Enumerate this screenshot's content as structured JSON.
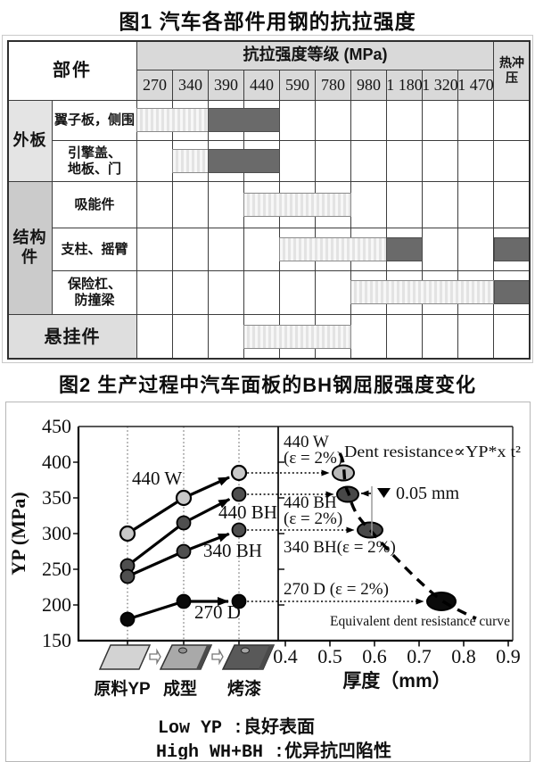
{
  "figure1": {
    "title": "图1 汽车各部件用钢的抗拉强度",
    "part_header": "部件",
    "strength_header": "抗拉强度等级 (MPa)",
    "hot_header": "热冲压",
    "grade_labels": [
      "270",
      "340",
      "390",
      "440",
      "590",
      "780",
      "980",
      "1 180",
      "1 320",
      "1 470"
    ],
    "groups": [
      {
        "label": "外板",
        "from_row": 0,
        "to_row": 1,
        "bg": "#e4e4e4",
        "full_width": false
      },
      {
        "label": "结构件",
        "from_row": 2,
        "to_row": 4,
        "bg": "#cbcbcb",
        "full_width": false
      },
      {
        "label": "悬挂件",
        "from_row": 5,
        "to_row": 5,
        "bg": "#dedede",
        "full_width": true
      }
    ],
    "rows": [
      {
        "component": "翼子板，侧围",
        "bars": [
          {
            "style": "light",
            "col": 0,
            "span": 2
          },
          {
            "style": "dark",
            "col": 2,
            "span": 2
          }
        ],
        "hot": false
      },
      {
        "component": "引擎盖、\n地板、门",
        "bars": [
          {
            "style": "light",
            "col": 1,
            "span": 1
          },
          {
            "style": "dark",
            "col": 2,
            "span": 2
          }
        ],
        "hot": false
      },
      {
        "component": "吸能件",
        "bars": [
          {
            "style": "light",
            "col": 3,
            "span": 3
          }
        ],
        "hot": false
      },
      {
        "component": "支柱、摇臂",
        "bars": [
          {
            "style": "light",
            "col": 4,
            "span": 3
          },
          {
            "style": "dark",
            "col": 7,
            "span": 1
          }
        ],
        "hot": true
      },
      {
        "component": "保险杠、\n防撞梁",
        "bars": [
          {
            "style": "light",
            "col": 6,
            "span": 4
          }
        ],
        "hot": true
      },
      {
        "component": "悬挂件",
        "bars": [
          {
            "style": "light",
            "col": 3,
            "span": 3
          }
        ],
        "hot": false
      }
    ]
  },
  "figure2": {
    "title": "图2 生产过程中汽车面板的BH钢屈服强度变化",
    "y_label": "YP (MPa)",
    "x_label": "厚度（mm）",
    "y_ticks": [
      "450",
      "400",
      "350",
      "300",
      "250",
      "200",
      "150"
    ],
    "x_ticks": [
      "0.4",
      "0.5",
      "0.6",
      "0.7",
      "0.8",
      "0.9"
    ],
    "stage_labels": [
      "原料YP",
      "成型",
      "烤漆"
    ],
    "series": [
      {
        "name": "440 W",
        "values": [
          300,
          350,
          385
        ],
        "marker": "light",
        "left_label": "440 W",
        "right_label_lines": [
          "440 W",
          "(ε = 2%)"
        ],
        "ellipse": {
          "x": 0.53,
          "y": 385
        }
      },
      {
        "name": "440 BH",
        "values": [
          255,
          315,
          355
        ],
        "marker": "dark",
        "left_label": "440 BH",
        "right_label_lines": [
          "440 BH",
          "(ε = 2%)"
        ],
        "ellipse": {
          "x": 0.54,
          "y": 355
        }
      },
      {
        "name": "340 BH",
        "values": [
          240,
          275,
          305
        ],
        "marker": "dark",
        "left_label": "340 BH",
        "right_label_lines": [
          "340 BH(ε = 2%)"
        ],
        "ellipse": {
          "x": 0.59,
          "y": 305
        }
      },
      {
        "name": "270 D",
        "values": [
          180,
          205,
          205
        ],
        "marker": "black",
        "left_label": "270 D",
        "right_label_lines": [
          "270 D (ε = 2%)"
        ],
        "ellipse": {
          "x": 0.75,
          "y": 205
        }
      }
    ],
    "annotations": {
      "dent_formula": "Dent resistance∝YP*x t²",
      "delta": "0.05 mm",
      "equivalent": "Equivalent dent resistance curve"
    },
    "captions": [
      "Low YP :良好表面",
      "High WH+BH :优异抗凹陷性"
    ],
    "colors": {
      "marker_light": "#c9c9c9",
      "marker_dark": "#4f4f4f",
      "marker_black": "#0a0a0a",
      "ellipse_light": "#b9b9b9",
      "ellipse_dark": "#484848",
      "ellipse_black": "#0b0b0b"
    }
  },
  "chart_data": [
    {
      "type": "table",
      "title": "图1 汽车各部件用钢的抗拉强度",
      "unit": "MPa",
      "columns_mpa": [
        270,
        340,
        390,
        440,
        590,
        780,
        980,
        1180,
        1320,
        1470
      ],
      "extra_column": "热冲压",
      "rows": [
        {
          "group": "外板",
          "component": "翼子板，侧围",
          "light_grades": [
            270,
            340
          ],
          "dark_grades": [
            390,
            440
          ],
          "hot_stamping": false
        },
        {
          "group": "外板",
          "component": "引擎盖、地板、门",
          "light_grades": [
            340
          ],
          "dark_grades": [
            390,
            440
          ],
          "hot_stamping": false
        },
        {
          "group": "结构件",
          "component": "吸能件",
          "light_grades": [
            440,
            590,
            780
          ],
          "dark_grades": [],
          "hot_stamping": false
        },
        {
          "group": "结构件",
          "component": "支柱、摇臂",
          "light_grades": [
            590,
            780,
            980
          ],
          "dark_grades": [
            1180
          ],
          "hot_stamping": true
        },
        {
          "group": "结构件",
          "component": "保险杠、防撞梁",
          "light_grades": [
            980,
            1180,
            1320,
            1470
          ],
          "dark_grades": [],
          "hot_stamping": true
        },
        {
          "group": "悬挂件",
          "component": "悬挂件",
          "light_grades": [
            440,
            590,
            780
          ],
          "dark_grades": [],
          "hot_stamping": false
        }
      ]
    },
    {
      "type": "line",
      "title": "图2 生产过程中汽车面板的BH钢屈服强度变化",
      "categories": [
        "原料YP",
        "成型",
        "烤漆"
      ],
      "ylabel": "YP (MPa)",
      "ylim": [
        150,
        450
      ],
      "series": [
        {
          "name": "440 W",
          "values": [
            300,
            350,
            385
          ]
        },
        {
          "name": "440 BH",
          "values": [
            255,
            315,
            355
          ]
        },
        {
          "name": "340 BH",
          "values": [
            240,
            275,
            305
          ]
        },
        {
          "name": "270 D",
          "values": [
            180,
            205,
            205
          ]
        }
      ],
      "right_panel_scatter": {
        "xlabel": "厚度（mm）",
        "xlim": [
          0.4,
          0.9
        ],
        "points": [
          {
            "name": "440 W (ε = 2%)",
            "x": 0.53,
            "y": 385
          },
          {
            "name": "440 BH (ε = 2%)",
            "x": 0.54,
            "y": 355
          },
          {
            "name": "340 BH(ε = 2%)",
            "x": 0.59,
            "y": 305
          },
          {
            "name": "270 D (ε = 2%)",
            "x": 0.75,
            "y": 205
          }
        ],
        "dashed_curve_label": "Equivalent dent resistance curve"
      },
      "annotations": [
        "Dent resistance∝YP*x t²",
        "▼ 0.05 mm",
        "Low YP :良好表面",
        "High WH+BH :优异抗凹陷性"
      ]
    }
  ]
}
